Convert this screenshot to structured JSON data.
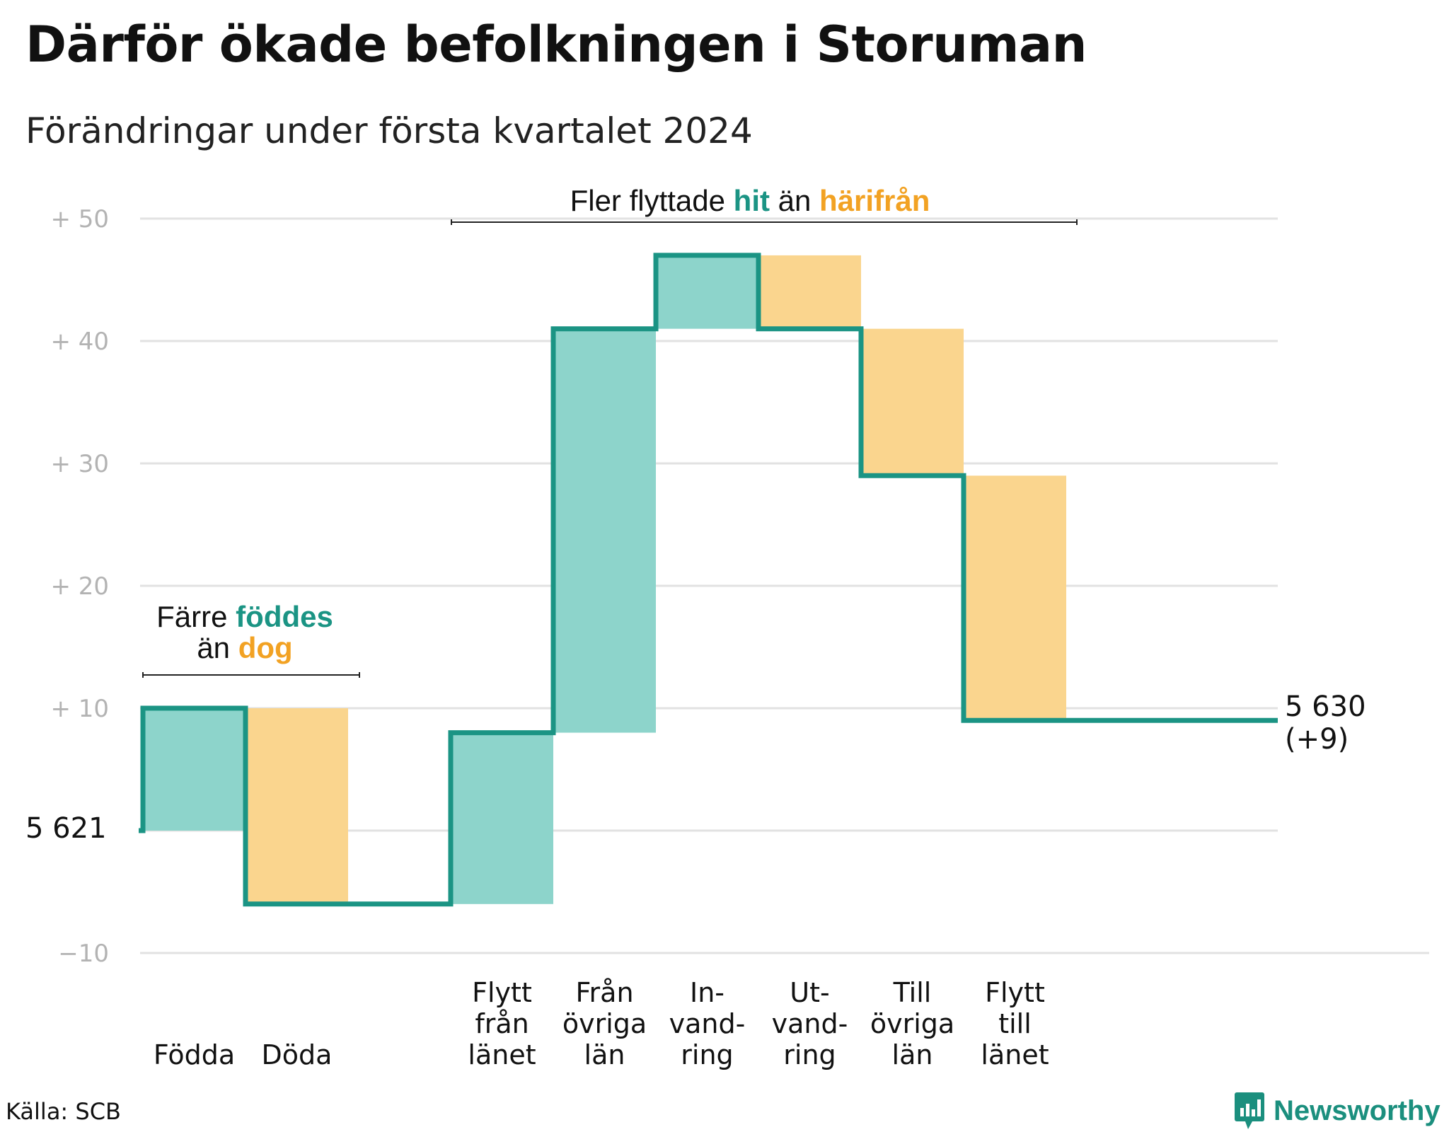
{
  "title": "Därför ökade befolkningen i Storuman",
  "subtitle": "Förändringar under första kvartalet 2024",
  "source": "Källa: SCB",
  "logo": {
    "text": "Newsworthy",
    "icon": "bar-chart-speech-icon"
  },
  "colors": {
    "increase": "#8dd4cb",
    "decrease": "#fad58e",
    "line": "#1b9484",
    "teal_text": "#1b9484",
    "orange_text": "#f2a223",
    "grid": "#e2e2e2",
    "tick": "#b3b3b3"
  },
  "annotations": {
    "births": {
      "line1": "Färre",
      "line1_teal": "föddes",
      "line2": "än",
      "line2_orange": "dog"
    },
    "moves": {
      "prefix": "Fler flyttade",
      "teal": "hit",
      "mid": "än",
      "orange": "härifrån"
    }
  },
  "chart_data": {
    "type": "waterfall",
    "title": "Därför ökade befolkningen i Storuman",
    "subtitle": "Förändringar under första kvartalet 2024",
    "start_label": "5  621",
    "start_value": 0,
    "end_label": "5 630",
    "end_delta": "(+9)",
    "ylim": [
      -10,
      50
    ],
    "yticks": [
      {
        "value": 50,
        "label": "+  50"
      },
      {
        "value": 40,
        "label": "+  40"
      },
      {
        "value": 30,
        "label": "+  30"
      },
      {
        "value": 20,
        "label": "+  20"
      },
      {
        "value": 10,
        "label": "+  10"
      },
      {
        "value": 0,
        "label": ""
      },
      {
        "value": -10,
        "label": "−10"
      }
    ],
    "grid": true,
    "steps": [
      {
        "label": [
          "Födda"
        ],
        "from": 0,
        "to": 10,
        "kind": "increase"
      },
      {
        "label": [
          "Döda"
        ],
        "from": 10,
        "to": -6,
        "kind": "decrease"
      },
      {
        "label": [
          ""
        ],
        "from": -6,
        "to": -6,
        "kind": "none"
      },
      {
        "label": [
          "Flytt",
          "från",
          "länet"
        ],
        "from": -6,
        "to": 8,
        "kind": "increase"
      },
      {
        "label": [
          "Från",
          "övriga",
          "län"
        ],
        "from": 8,
        "to": 41,
        "kind": "increase"
      },
      {
        "label": [
          "In-",
          "vand-",
          "ring"
        ],
        "from": 41,
        "to": 47,
        "kind": "increase"
      },
      {
        "label": [
          "Ut-",
          "vand-",
          "ring"
        ],
        "from": 47,
        "to": 41,
        "kind": "decrease"
      },
      {
        "label": [
          "Till",
          "övriga",
          "län"
        ],
        "from": 41,
        "to": 29,
        "kind": "decrease"
      },
      {
        "label": [
          "Flytt",
          "till",
          "länet"
        ],
        "from": 29,
        "to": 9,
        "kind": "decrease"
      }
    ],
    "end_value": 9
  }
}
